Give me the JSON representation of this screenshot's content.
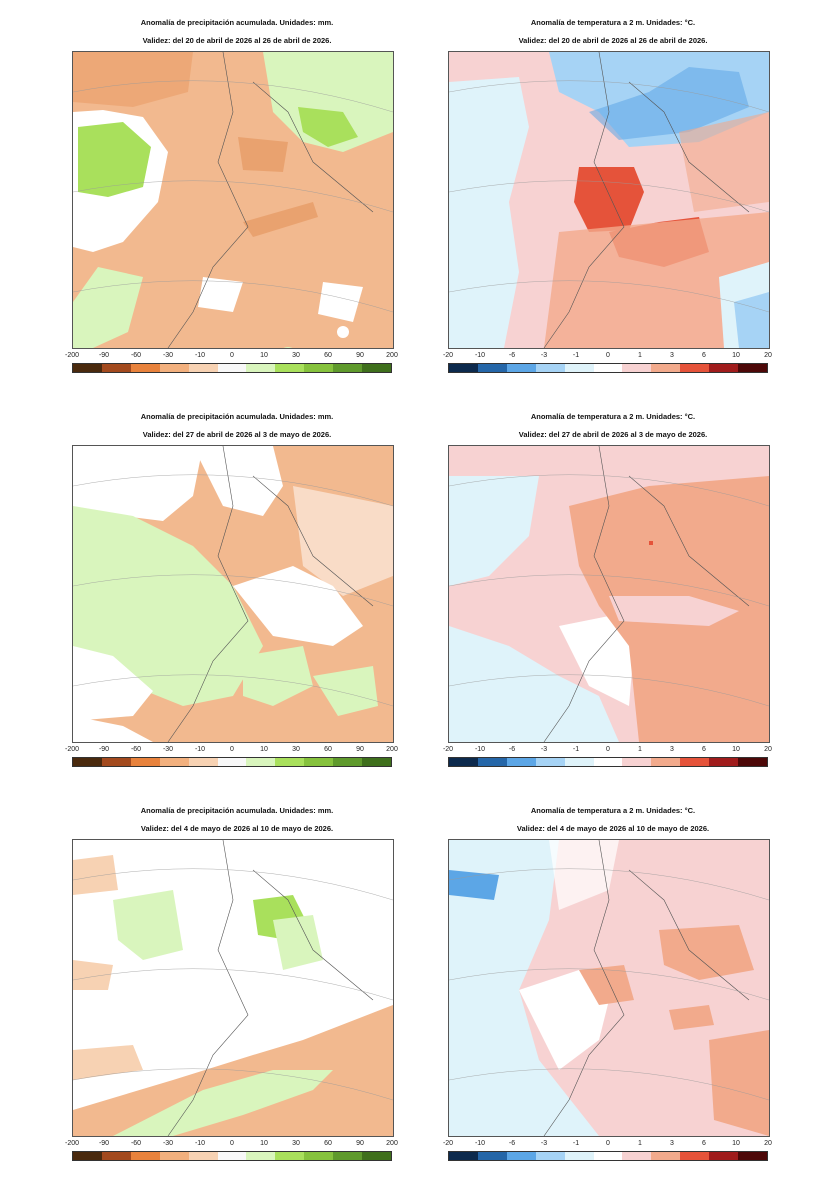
{
  "precip_title": "Anomalía de precipitación acumulada. Unidades: mm.",
  "temp_title": "Anomalía de temperatura a 2 m. Unidades: °C.",
  "periods": [
    "Validez: del 20 de abril de 2026 al 26 de abril de 2026.",
    "Validez: del 27 de abril de 2026 al 3 de mayo de 2026.",
    "Validez: del 4 de mayo de 2026 al 10 de mayo de 2026."
  ],
  "precip_scale": {
    "ticks": [
      "-200",
      "-90",
      "-60",
      "-30",
      "-10",
      "0",
      "10",
      "30",
      "60",
      "90",
      "200"
    ],
    "colors": [
      "#4a2a0e",
      "#a34a1e",
      "#e8823c",
      "#f2b07e",
      "#f7d2b3",
      "#f8f8f8",
      "#d9f5bd",
      "#a9e05c",
      "#86c23d",
      "#5f9a2c",
      "#3f6f1c"
    ]
  },
  "temp_scale": {
    "ticks": [
      "-20",
      "-10",
      "-6",
      "-3",
      "-1",
      "0",
      "1",
      "3",
      "6",
      "10",
      "20"
    ],
    "colors": [
      "#0d2a4d",
      "#2566a8",
      "#5ca6e6",
      "#a6d3f5",
      "#dff3fa",
      "#ffffff",
      "#f7d2d2",
      "#f2aa8c",
      "#e5533a",
      "#a01c1c",
      "#4d0808"
    ]
  }
}
